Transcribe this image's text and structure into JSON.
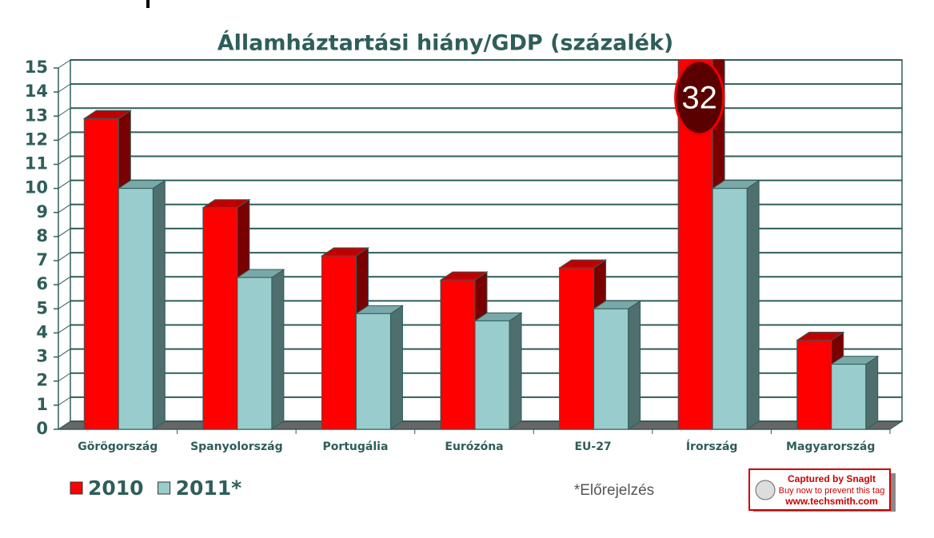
{
  "chart_data": {
    "type": "bar3d",
    "title": "Államháztartási hiány/GDP (százalék)",
    "categories": [
      "Görögország",
      "Spanyolország",
      "Portugália",
      "Eurózóna",
      "EU-27",
      "Írország",
      "Magyarország"
    ],
    "series": [
      {
        "name": "2010",
        "color": "#ff0000",
        "values": [
          12.9,
          9.2,
          7.2,
          6.2,
          6.7,
          32,
          3.7
        ]
      },
      {
        "name": "2011*",
        "color": "#99cccc",
        "values": [
          10,
          6.3,
          4.8,
          4.5,
          5.0,
          10,
          2.7
        ]
      }
    ],
    "ylim": [
      0,
      15
    ],
    "yticks": [
      0,
      1,
      2,
      3,
      4,
      5,
      6,
      7,
      8,
      9,
      10,
      11,
      12,
      13,
      14,
      15
    ],
    "grid": true,
    "annotation": "*Előrejelzés",
    "watermark": [
      "Captured by SnagIt",
      "Buy now to prevent this tag",
      "www.techsmith.com"
    ]
  }
}
